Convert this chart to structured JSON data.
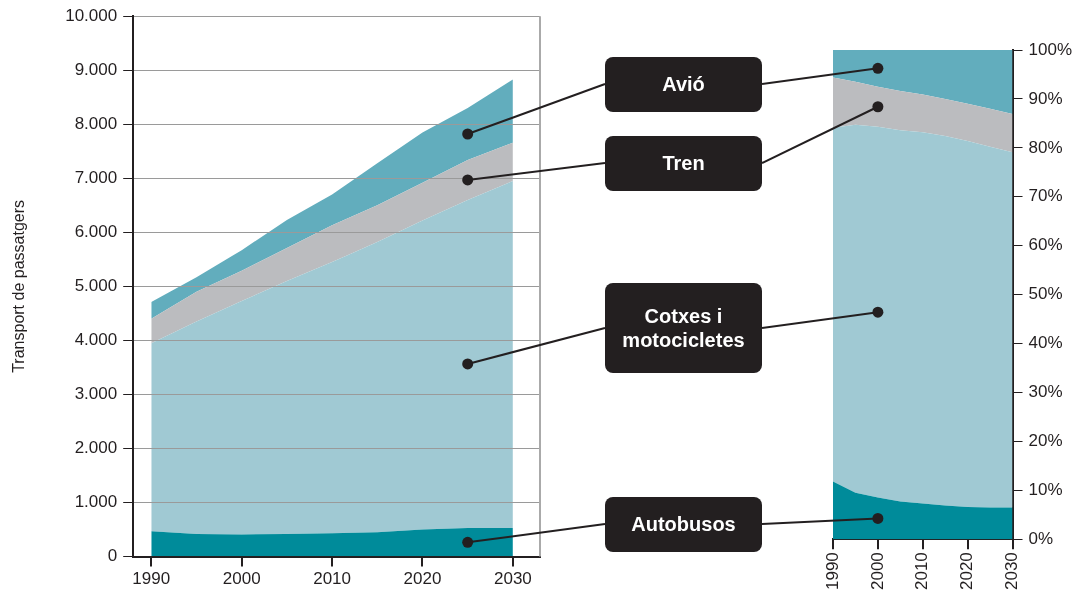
{
  "chart_data": [
    {
      "type": "area",
      "ylabel": "Transport de passatgers",
      "stacked": true,
      "grid": "y",
      "x": [
        1990,
        1995,
        2000,
        2005,
        2010,
        2015,
        2020,
        2025,
        2030
      ],
      "xlim": [
        1988,
        2033
      ],
      "xticks": [
        1990,
        2000,
        2010,
        2020,
        2030
      ],
      "ylim": [
        0,
        10000
      ],
      "yticks": [
        0,
        {
          "value": 1000,
          "label": "1.000"
        },
        {
          "value": 2000,
          "label": "2.000"
        },
        {
          "value": 3000,
          "label": "3.000"
        },
        {
          "value": 4000,
          "label": "4.000"
        },
        {
          "value": 5000,
          "label": "5.000"
        },
        {
          "value": 6000,
          "label": "6.000"
        },
        {
          "value": 7000,
          "label": "7.000"
        },
        {
          "value": 8000,
          "label": "8.000"
        },
        {
          "value": 9000,
          "label": "9.000"
        },
        {
          "value": 10000,
          "label": "10.000"
        }
      ],
      "series": [
        {
          "name": "Autobusos",
          "color": "#008b9a",
          "values": [
            470,
            420,
            410,
            420,
            430,
            450,
            500,
            530,
            530
          ]
        },
        {
          "name": "Cotxes i motocicletes",
          "color": "#a0c9d3",
          "values": [
            3480,
            3930,
            4320,
            4680,
            5020,
            5370,
            5720,
            6070,
            6420
          ]
        },
        {
          "name": "Tren",
          "color": "#bbbcbf",
          "values": [
            450,
            550,
            560,
            610,
            680,
            680,
            700,
            740,
            710
          ]
        },
        {
          "name": "Avió",
          "color": "#62adbd",
          "values": [
            310,
            270,
            380,
            520,
            570,
            780,
            930,
            960,
            1170
          ]
        }
      ]
    },
    {
      "type": "area",
      "stacked": true,
      "x": [
        1990,
        1995,
        2000,
        2005,
        2010,
        2015,
        2020,
        2025,
        2030
      ],
      "xlim": [
        1990,
        2030
      ],
      "xticks": [
        1990,
        2000,
        2010,
        2020,
        2030
      ],
      "ylim": [
        0,
        100
      ],
      "yticks": [
        {
          "value": 0,
          "label": "0%"
        },
        {
          "value": 10,
          "label": "10%"
        },
        {
          "value": 20,
          "label": "20%"
        },
        {
          "value": 30,
          "label": "30%"
        },
        {
          "value": 40,
          "label": "40%"
        },
        {
          "value": 50,
          "label": "50%"
        },
        {
          "value": 60,
          "label": "60%"
        },
        {
          "value": 70,
          "label": "70%"
        },
        {
          "value": 80,
          "label": "80%"
        },
        {
          "value": 90,
          "label": "90%"
        },
        {
          "value": 100,
          "label": "100%"
        }
      ],
      "series": [
        {
          "color": "#008b9a",
          "values": [
            11.8,
            9.5,
            8.5,
            7.7,
            7.3,
            6.9,
            6.6,
            6.5,
            6.5
          ]
        },
        {
          "color": "#a0c9d3",
          "values": [
            72.3,
            75.2,
            75.8,
            75.9,
            75.9,
            75.5,
            74.8,
            73.7,
            72.6
          ]
        },
        {
          "color": "#bbbcbf",
          "values": [
            10.3,
            8.8,
            8.2,
            8.0,
            7.7,
            7.6,
            7.6,
            7.8,
            7.8
          ]
        },
        {
          "color": "#62adbd",
          "values": [
            5.6,
            6.5,
            7.5,
            8.4,
            9.1,
            10,
            11,
            12,
            13.1
          ]
        }
      ]
    }
  ]
}
